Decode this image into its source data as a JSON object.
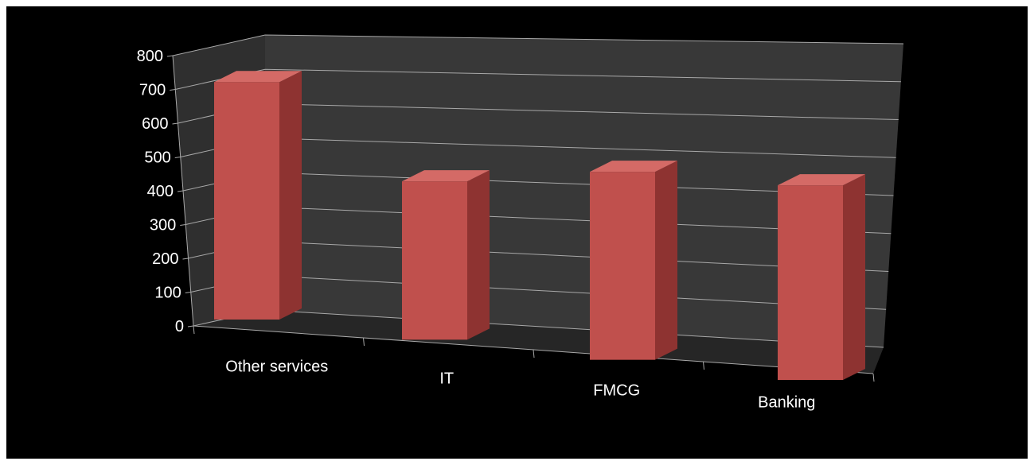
{
  "colors": {
    "page_background": "#ffffff",
    "chart_background": "#000000",
    "back_wall": "#383838",
    "side_wall": "#2f2f2f",
    "floor": "#262626",
    "gridline": "#a8a8a8",
    "bar_front": "#c0504d",
    "bar_side": "#8e3331",
    "bar_top": "#d46a66",
    "text": "#ffffff"
  },
  "chart_data": {
    "type": "bar",
    "style": "3d-perspective-columns",
    "title": "",
    "xlabel": "",
    "ylabel": "",
    "categories": [
      "Other services",
      "IT",
      "FMCG",
      "Banking"
    ],
    "series": [
      {
        "values": [
          720,
          480,
          570,
          590
        ]
      }
    ],
    "ylim": [
      0,
      800
    ],
    "yticks": [
      "0",
      "100",
      "200",
      "300",
      "400",
      "500",
      "600",
      "700",
      "800"
    ],
    "grid": true,
    "legend": "none"
  }
}
